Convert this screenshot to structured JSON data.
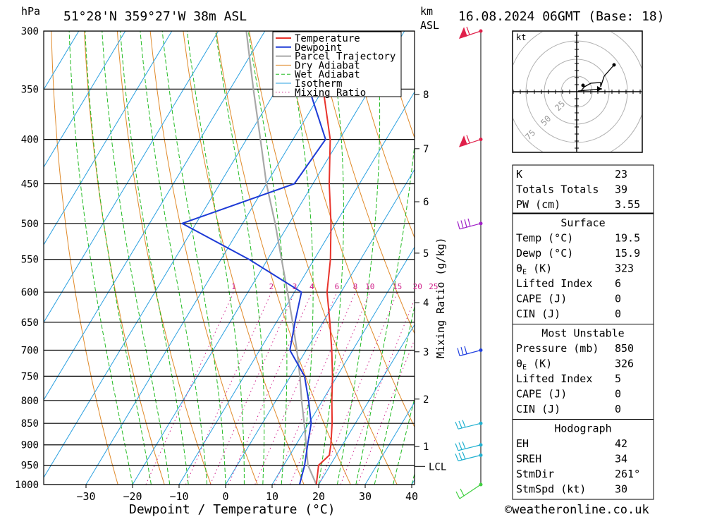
{
  "header": {
    "location": "51°28'N  359°27'W  38m  ASL",
    "datetime": "16.08.2024  06GMT  (Base: 18)",
    "hpa_unit": "hPa",
    "km_unit": "km",
    "asl_unit": "ASL"
  },
  "chart_data": {
    "type": "skew-t",
    "xlabel": "Dewpoint / Temperature (°C)",
    "ylabel": "hPa",
    "mixing_label": "Mixing Ratio (g/kg)",
    "x_ticks": [
      -30,
      -20,
      -10,
      0,
      10,
      20,
      30,
      40
    ],
    "pressure_levels": [
      300,
      350,
      400,
      450,
      500,
      550,
      600,
      650,
      700,
      750,
      800,
      850,
      900,
      950,
      1000
    ],
    "height_km": [
      {
        "km": "1",
        "p": 904
      },
      {
        "km": "2",
        "p": 797
      },
      {
        "km": "3",
        "p": 703
      },
      {
        "km": "4",
        "p": 617
      },
      {
        "km": "5",
        "p": 541
      },
      {
        "km": "6",
        "p": 472
      },
      {
        "km": "7",
        "p": 410
      },
      {
        "km": "8",
        "p": 355
      }
    ],
    "lcl": {
      "label": "LCL",
      "p": 953
    },
    "mixing_ratios": [
      "1",
      "2",
      "3",
      "4",
      "6",
      "8",
      "10",
      "15",
      "20",
      "25"
    ],
    "legend": [
      "Temperature",
      "Dewpoint",
      "Parcel Trajectory",
      "Dry Adiabat",
      "Wet Adiabat",
      "Isotherm",
      "Mixing Ratio"
    ],
    "series": [
      {
        "name": "Temperature",
        "color": "#e8332b",
        "points": [
          [
            1000,
            19.5
          ],
          [
            950,
            17.5
          ],
          [
            925,
            18.5
          ],
          [
            900,
            17.5
          ],
          [
            850,
            15.0
          ],
          [
            800,
            12.0
          ],
          [
            750,
            9.0
          ],
          [
            700,
            5.5
          ],
          [
            650,
            1.5
          ],
          [
            600,
            -3.0
          ],
          [
            550,
            -6.5
          ],
          [
            500,
            -11.0
          ],
          [
            450,
            -16.5
          ],
          [
            400,
            -22.0
          ],
          [
            350,
            -30.0
          ],
          [
            300,
            -39.0
          ]
        ]
      },
      {
        "name": "Dewpoint",
        "color": "#1d3ad6",
        "points": [
          [
            1000,
            15.9
          ],
          [
            950,
            14.5
          ],
          [
            900,
            12.5
          ],
          [
            850,
            10.5
          ],
          [
            800,
            7.0
          ],
          [
            750,
            3.0
          ],
          [
            700,
            -3.5
          ],
          [
            650,
            -6.0
          ],
          [
            600,
            -8.5
          ],
          [
            550,
            -24.0
          ],
          [
            500,
            -43.0
          ],
          [
            450,
            -24.0
          ],
          [
            400,
            -23.0
          ],
          [
            350,
            -33.0
          ],
          [
            300,
            -42.0
          ]
        ]
      },
      {
        "name": "Parcel Trajectory",
        "color": "#a8a8a8",
        "points": [
          [
            1000,
            19.5
          ],
          [
            950,
            15.2
          ],
          [
            900,
            12.2
          ],
          [
            850,
            9.0
          ],
          [
            800,
            5.5
          ],
          [
            750,
            2.0
          ],
          [
            700,
            -2.0
          ],
          [
            650,
            -6.5
          ],
          [
            600,
            -11.5
          ],
          [
            550,
            -17.0
          ],
          [
            500,
            -23.0
          ],
          [
            450,
            -30.0
          ],
          [
            400,
            -37.0
          ],
          [
            350,
            -45.0
          ],
          [
            300,
            -54.0
          ]
        ]
      }
    ]
  },
  "wind_barbs": [
    {
      "p": 300,
      "color": "#e0204a"
    },
    {
      "p": 400,
      "color": "#e0204a"
    },
    {
      "p": 500,
      "color": "#a020c8"
    },
    {
      "p": 700,
      "color": "#2040e0"
    },
    {
      "p": 850,
      "color": "#20b0d0"
    },
    {
      "p": 900,
      "color": "#20b0d0"
    },
    {
      "p": 925,
      "color": "#20b0d0"
    },
    {
      "p": 1000,
      "color": "#40d040"
    }
  ],
  "hodograph": {
    "unit": "kt",
    "ring_labels": [
      "25",
      "50",
      "75"
    ]
  },
  "indices": {
    "k_label": "K",
    "k_value": "23",
    "tt_label": "Totals Totals",
    "tt_value": "39",
    "pw_label": "PW (cm)",
    "pw_value": "3.55"
  },
  "surface": {
    "title": "Surface",
    "rows": [
      {
        "label": "Temp (°C)",
        "value": "19.5"
      },
      {
        "label": "Dewp (°C)",
        "value": "15.9"
      },
      {
        "label": "θE(K)",
        "value": "323"
      },
      {
        "label": "Lifted Index",
        "value": "6"
      },
      {
        "label": "CAPE (J)",
        "value": "0"
      },
      {
        "label": "CIN (J)",
        "value": "0"
      }
    ]
  },
  "most_unstable": {
    "title": "Most Unstable",
    "rows": [
      {
        "label": "Pressure (mb)",
        "value": "850"
      },
      {
        "label": "θE (K)",
        "value": "326"
      },
      {
        "label": "Lifted Index",
        "value": "5"
      },
      {
        "label": "CAPE (J)",
        "value": "0"
      },
      {
        "label": "CIN (J)",
        "value": "0"
      }
    ]
  },
  "hodo_table": {
    "title": "Hodograph",
    "rows": [
      {
        "label": "EH",
        "value": "42"
      },
      {
        "label": "SREH",
        "value": "34"
      },
      {
        "label": "StmDir",
        "value": "261°"
      },
      {
        "label": "StmSpd (kt)",
        "value": "30"
      }
    ]
  },
  "footer": {
    "copyright": "©weatheronline.co.uk"
  },
  "colors": {
    "temperature": "#e8332b",
    "dewpoint": "#1d3ad6",
    "parcel": "#a8a8a8",
    "dry_adiabat": "#e08a2a",
    "wet_adiabat": "#22bb22",
    "isotherm": "#2aa0e0",
    "mixing_ratio": "#d0208a"
  }
}
